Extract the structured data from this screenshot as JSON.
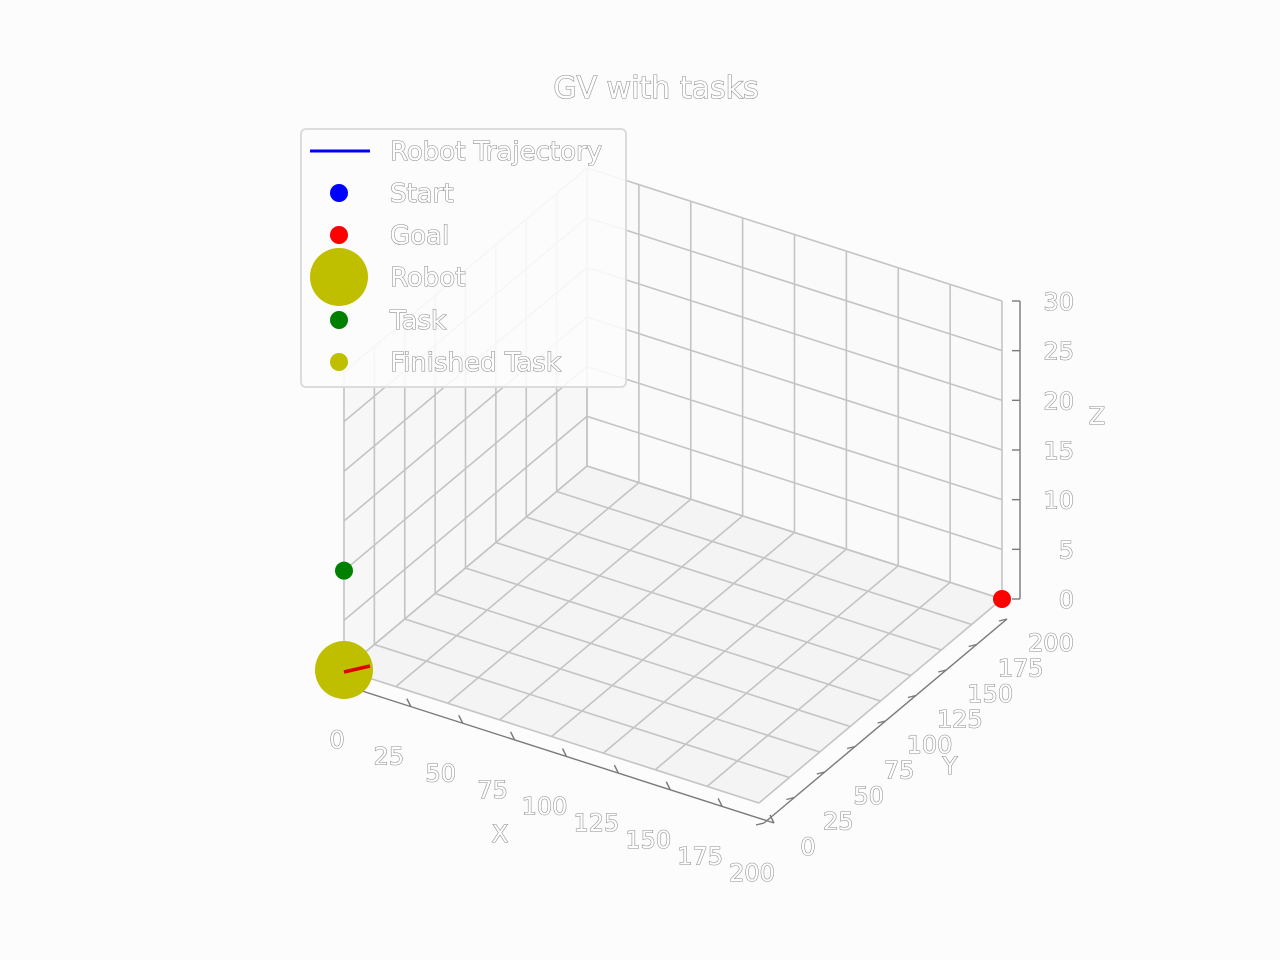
{
  "chart_data": {
    "type": "scatter",
    "projection": "3d",
    "title": "GV with tasks",
    "xlabel": "X",
    "ylabel": "Y",
    "zlabel": "Z",
    "xlim": [
      0,
      200
    ],
    "ylim": [
      0,
      200
    ],
    "zlim": [
      0,
      30
    ],
    "xticks": [
      "0",
      "25",
      "50",
      "75",
      "100",
      "125",
      "150",
      "175",
      "200"
    ],
    "yticks": [
      "0",
      "25",
      "50",
      "75",
      "100",
      "125",
      "150",
      "175",
      "200"
    ],
    "zticks": [
      "0",
      "5",
      "10",
      "15",
      "20",
      "25",
      "30"
    ],
    "grid": true,
    "legend": {
      "placement": "top-left",
      "entries": [
        {
          "label": "Robot Trajectory",
          "marker": "line",
          "color": "#0000ff"
        },
        {
          "label": "Start",
          "marker": "dot",
          "color": "#0000ff"
        },
        {
          "label": "Goal",
          "marker": "dot",
          "color": "#ff0000"
        },
        {
          "label": "Robot",
          "marker": "big-dot",
          "color": "#bfbf00"
        },
        {
          "label": "Task",
          "marker": "dot",
          "color": "#008000"
        },
        {
          "label": "Finished Task",
          "marker": "dot",
          "color": "#bfbf00"
        }
      ]
    },
    "points": [
      {
        "series": "Robot",
        "x": 0,
        "y": 0,
        "z": 0,
        "color": "#bfbf00"
      },
      {
        "series": "Goal",
        "x": 200,
        "y": 200,
        "z": 0,
        "color": "#ff0000"
      },
      {
        "series": "Task",
        "x": 0,
        "y": 0,
        "z": 10,
        "color": "#008000"
      }
    ],
    "heading": {
      "x": [
        0,
        10
      ],
      "y": [
        0,
        0
      ],
      "z": [
        0,
        0
      ],
      "color": "#e00000"
    }
  }
}
